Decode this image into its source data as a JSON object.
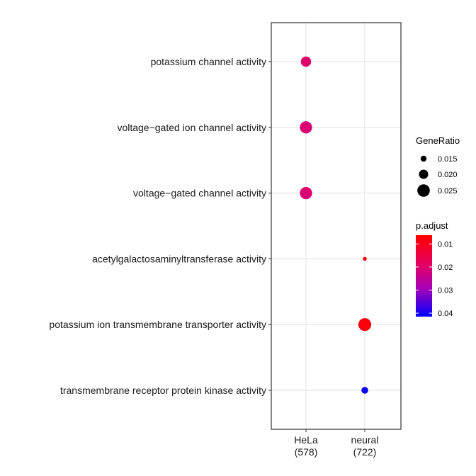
{
  "chart_data": {
    "type": "scatter",
    "title": "",
    "xlabel": "",
    "ylabel": "",
    "x_categories": [
      {
        "label": "HeLa",
        "count": "(578)"
      },
      {
        "label": "neural",
        "count": "(722)"
      }
    ],
    "y_categories": [
      "potassium channel activity",
      "voltage−gated ion channel activity",
      "voltage−gated channel activity",
      "acetylgalactosaminyltransferase activity",
      "potassium ion transmembrane transporter activity",
      "transmembrane receptor protein kinase activity"
    ],
    "points": [
      {
        "x": "HeLa",
        "y": "potassium channel activity",
        "gene_ratio": 0.0225,
        "p_adjust": 0.02
      },
      {
        "x": "HeLa",
        "y": "voltage−gated ion channel activity",
        "gene_ratio": 0.0255,
        "p_adjust": 0.021
      },
      {
        "x": "HeLa",
        "y": "voltage−gated channel activity",
        "gene_ratio": 0.0255,
        "p_adjust": 0.021
      },
      {
        "x": "neural",
        "y": "acetylgalactosaminyltransferase activity",
        "gene_ratio": 0.0125,
        "p_adjust": 0.0075
      },
      {
        "x": "neural",
        "y": "potassium ion transmembrane transporter activity",
        "gene_ratio": 0.0265,
        "p_adjust": 0.0078
      },
      {
        "x": "neural",
        "y": "transmembrane receptor protein kinase activity",
        "gene_ratio": 0.017,
        "p_adjust": 0.041
      }
    ],
    "grid": true,
    "legend_position": "right",
    "size_legend": {
      "title": "GeneRatio",
      "values": [
        0.015,
        0.02,
        0.025
      ],
      "labels": [
        "0.015",
        "0.020",
        "0.025"
      ]
    },
    "color_legend": {
      "title": "p.adjust",
      "domain": [
        0.0062,
        0.0415
      ],
      "ticks": [
        0.01,
        0.02,
        0.03,
        0.04
      ],
      "tick_labels": [
        "0.01",
        "0.02",
        "0.03",
        "0.04"
      ],
      "low_color": "#ff0000",
      "high_color": "#0000ff"
    }
  }
}
